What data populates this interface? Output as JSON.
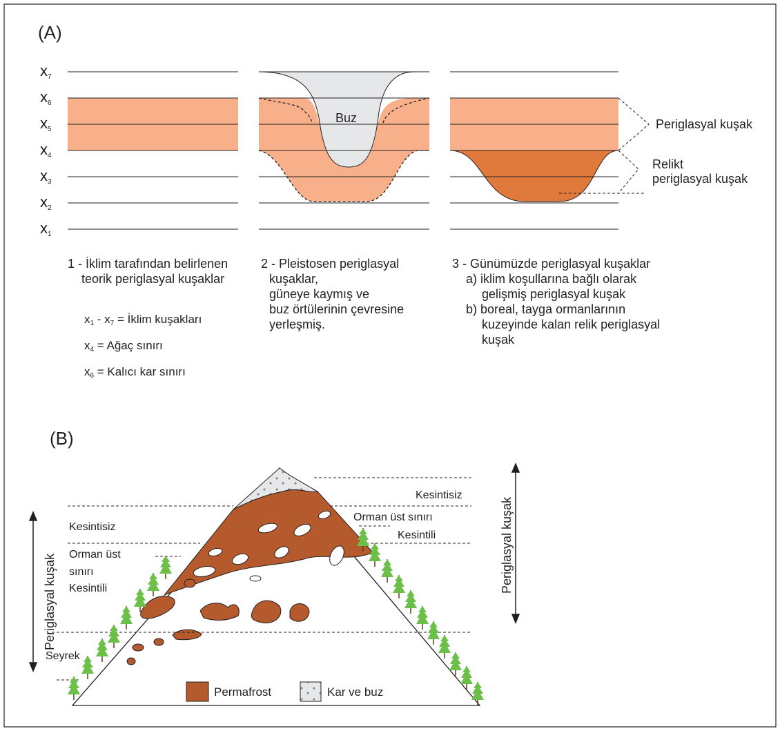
{
  "panel_a": {
    "label": "(A)",
    "levels": [
      "x",
      "x",
      "x",
      "x",
      "x",
      "x",
      "x"
    ],
    "level_subs": [
      "7",
      "6",
      "5",
      "4",
      "3",
      "2",
      "1"
    ],
    "ice_label": "Buz",
    "right_labels": {
      "periglacial": "Periglasyal kuşak",
      "relict_line1": "Relikt",
      "relict_line2": "periglasyal kuşak"
    },
    "captions": {
      "c1": [
        "1 - İklim tarafından belirlenen",
        "teorik periglasyal kuşaklar"
      ],
      "c2": [
        "2 - Pleistosen periglasyal",
        "kuşaklar,",
        "güneye kaymış ve",
        "buz örtülerinin çevresine",
        "yerleşmiş."
      ],
      "c3": [
        "3 - Günümüzde periglasyal kuşaklar",
        "a) iklim koşullarına bağlı olarak",
        "gelişmiş periglasyal kuşak",
        "b) boreal, tayga ormanlarının",
        "kuzeyinde kalan relik periglasyal",
        "kuşak"
      ]
    },
    "legend": {
      "l1_a": "x",
      "l1_a_sub": "1",
      "l1_mid": " - x",
      "l1_mid_sub": "7",
      "l1_text": " = İklim kuşakları",
      "l2_a": "x",
      "l2_a_sub": "4",
      "l2_text": " = Ağaç sınırı",
      "l3_a": "x",
      "l3_a_sub": "6",
      "l3_text": " = Kalıcı kar sınırı"
    },
    "colors": {
      "zone": "#f7b08a",
      "relict": "#e07a3c",
      "ice": "#e6e7e8"
    }
  },
  "panel_b": {
    "label": "(B)",
    "left_labels": {
      "continuous": "Kesintisiz",
      "forest_line1": "Orman üst",
      "forest_line2": "sınırı",
      "discontinuous": "Kesintili",
      "sparse": "Seyrek",
      "zone_vertical": "Periglasyal kuşak"
    },
    "right_labels": {
      "continuous": "Kesintisiz",
      "forest": "Orman üst sınırı",
      "discontinuous": "Kesintili",
      "zone_vertical": "Periglasyal kuşak"
    },
    "legend": {
      "permafrost": "Permafrost",
      "snow_ice": "Kar ve buz"
    },
    "colors": {
      "permafrost": "#b45a2c",
      "tree": "#6cc04a",
      "snow": "#e6e7e8"
    }
  }
}
